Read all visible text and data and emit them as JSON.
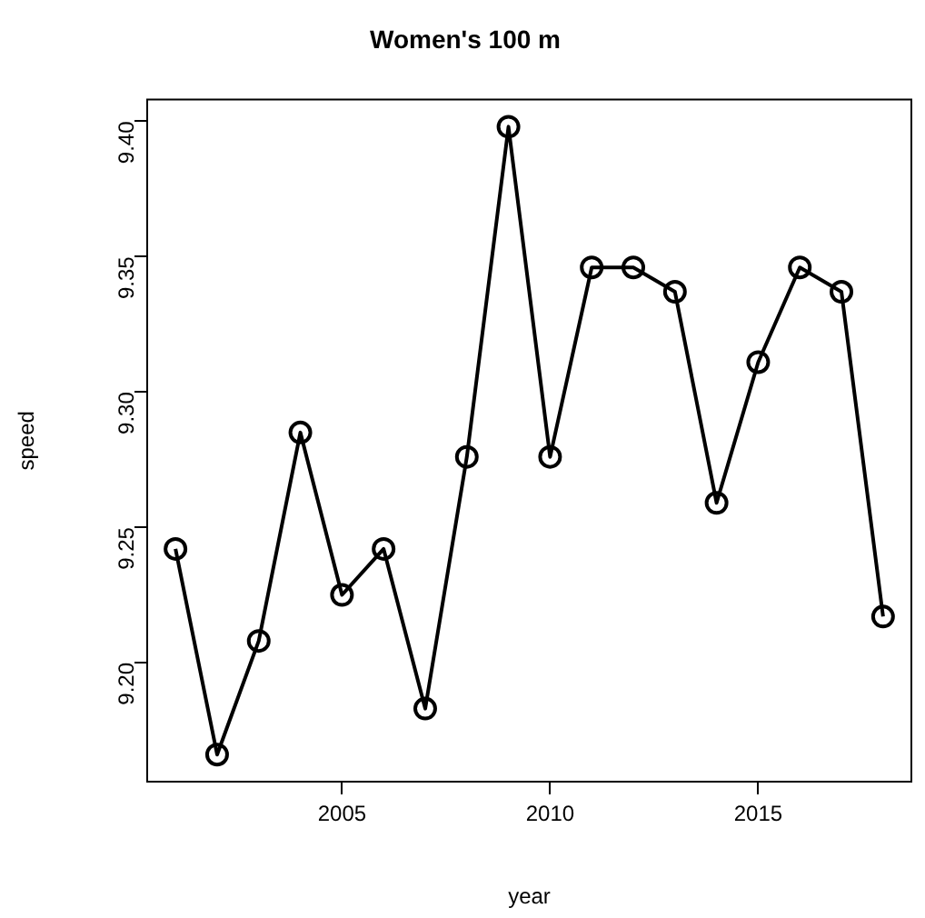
{
  "chart_data": {
    "type": "line",
    "title": "Women's 100 m",
    "xlabel": "year",
    "ylabel": "speed",
    "x": [
      2001,
      2002,
      2003,
      2004,
      2005,
      2006,
      2007,
      2008,
      2009,
      2010,
      2011,
      2012,
      2013,
      2014,
      2015,
      2016,
      2017,
      2018
    ],
    "series": [
      {
        "color": "#000000",
        "values": [
          9.242,
          9.166,
          9.208,
          9.285,
          9.225,
          9.242,
          9.183,
          9.276,
          9.398,
          9.276,
          9.346,
          9.346,
          9.337,
          9.259,
          9.311,
          9.346,
          9.337,
          9.217
        ]
      }
    ],
    "xlim": [
      2000.32,
      2018.68
    ],
    "ylim": [
      9.156,
      9.408
    ],
    "xticks": [
      2005,
      2010,
      2015
    ],
    "yticks": [
      {
        "value": 9.2,
        "label": "9.20"
      },
      {
        "value": 9.25,
        "label": "9.25"
      },
      {
        "value": 9.3,
        "label": "9.30"
      },
      {
        "value": 9.35,
        "label": "9.35"
      },
      {
        "value": 9.4,
        "label": "9.40"
      }
    ],
    "marker": "circle",
    "line_style": "solid",
    "grid": false,
    "legend": false
  }
}
